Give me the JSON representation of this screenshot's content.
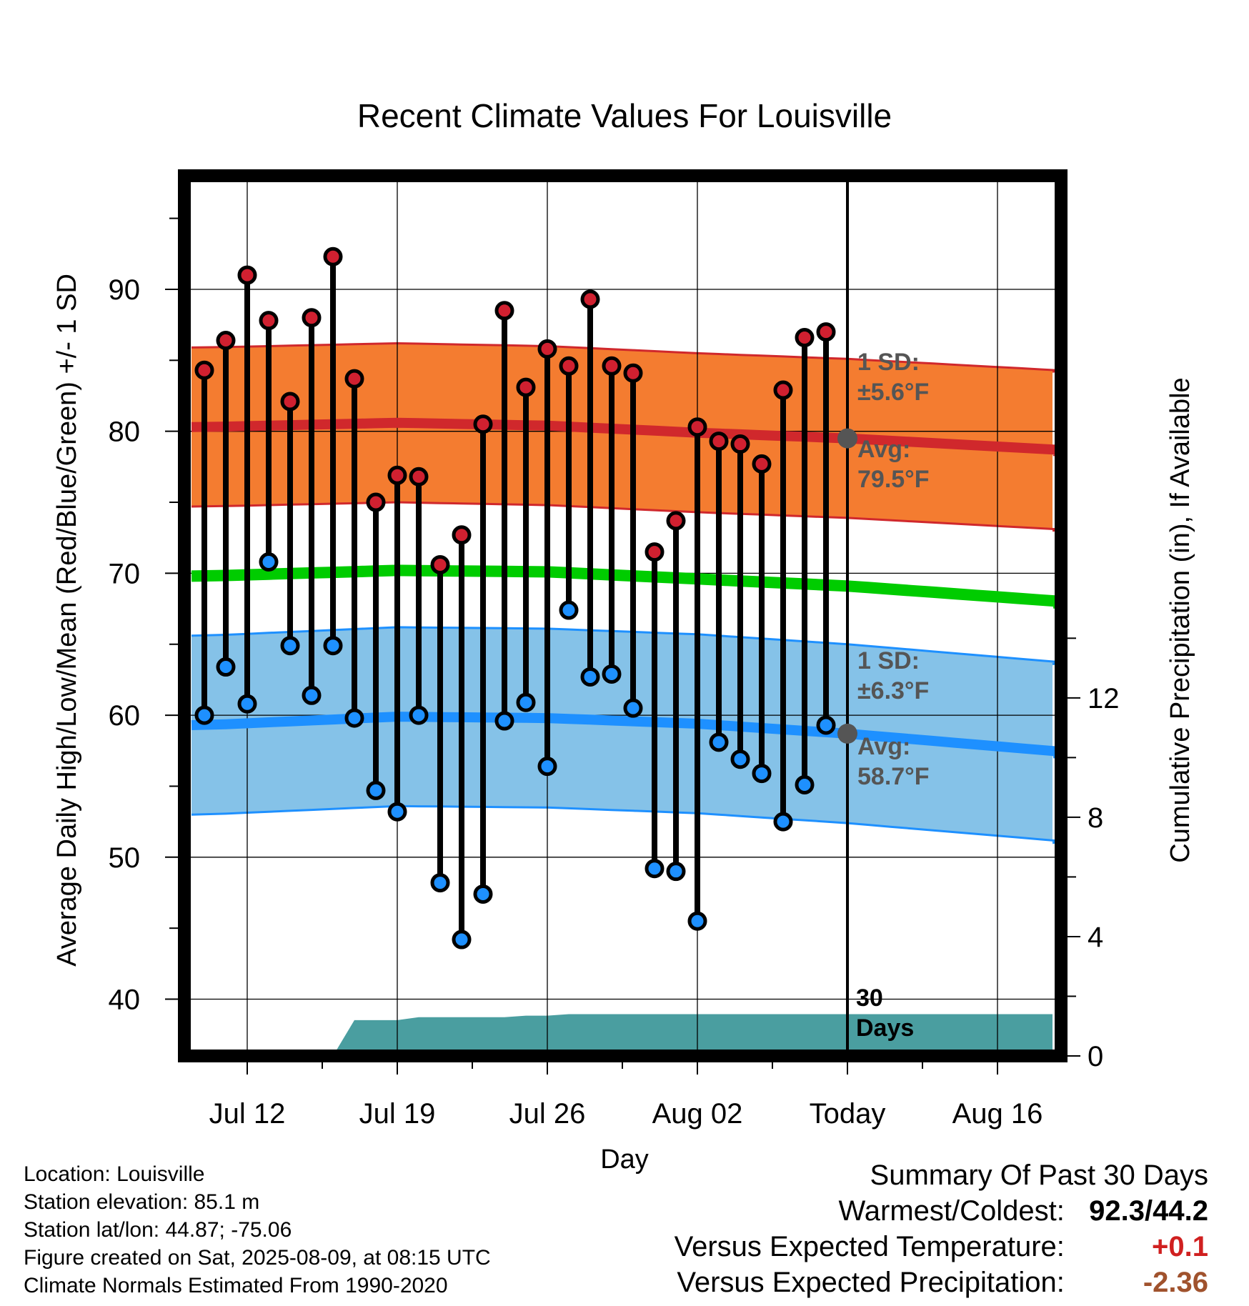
{
  "page": {
    "location_line": "Location: Louisville",
    "elevation_line": "Station elevation: 85.1 m",
    "latlon_line": "Station lat/lon: 44.87; -75.06",
    "created_line": "Figure created on Sat, 2025-08-09, at 08:15 UTC",
    "normals_line": "Climate Normals Estimated From 1990-2020"
  },
  "summary": {
    "title": "Summary Of Past 30 Days",
    "warmest_coldest_label": "Warmest/Coldest:",
    "warmest_coldest_value": "92.3/44.2",
    "temp_label": "Versus Expected Temperature:",
    "temp_value": "+0.1",
    "precip_label": "Versus Expected Precipitation:",
    "precip_value": "-2.36",
    "colors": {
      "temp_value": "#d02020",
      "precip_value": "#a0522d"
    }
  },
  "chart_data": {
    "type": "line",
    "title": "Recent Climate Values For Louisville",
    "xlabel": "Day",
    "ylabel": "Average Daily High/Low/Mean (Red/Blue/Green) +/- 1 SD",
    "y2label": "Cumulative Precipitation (in), If Available",
    "x_ticks": [
      "Jul 12",
      "Jul 19",
      "Jul 26",
      "Aug 02",
      "Today",
      "Aug 16"
    ],
    "x_dates": [
      "07-10",
      "07-11",
      "07-12",
      "07-13",
      "07-14",
      "07-15",
      "07-16",
      "07-17",
      "07-18",
      "07-19",
      "07-20",
      "07-21",
      "07-22",
      "07-23",
      "07-24",
      "07-25",
      "07-26",
      "07-27",
      "07-28",
      "07-29",
      "07-30",
      "07-31",
      "08-01",
      "08-02",
      "08-03",
      "08-04",
      "08-05",
      "08-06",
      "08-07",
      "08-08",
      "08-09",
      "08-10",
      "08-11",
      "08-12",
      "08-13",
      "08-14",
      "08-15",
      "08-16",
      "08-17",
      "08-18",
      "08-19",
      "08-20"
    ],
    "today": "08-09",
    "ylim": [
      36,
      98
    ],
    "y_ticks": [
      40,
      50,
      60,
      70,
      80,
      90
    ],
    "y2lim": [
      0,
      29.5
    ],
    "y2_ticks": [
      0,
      4,
      8,
      12
    ],
    "grid": true,
    "daily": {
      "dates": [
        "07-10",
        "07-11",
        "07-12",
        "07-13",
        "07-14",
        "07-15",
        "07-16",
        "07-17",
        "07-18",
        "07-19",
        "07-20",
        "07-21",
        "07-22",
        "07-23",
        "07-24",
        "07-25",
        "07-26",
        "07-27",
        "07-28",
        "07-29",
        "07-30",
        "07-31",
        "08-01",
        "08-02",
        "08-03",
        "08-04",
        "08-05",
        "08-06",
        "08-07",
        "08-08"
      ],
      "highs": [
        84.3,
        86.4,
        91.0,
        87.8,
        82.1,
        88.0,
        92.3,
        83.7,
        75.0,
        76.9,
        76.8,
        70.6,
        72.7,
        80.5,
        88.5,
        83.1,
        85.8,
        84.6,
        89.3,
        84.6,
        84.1,
        71.5,
        73.7,
        80.3,
        79.3,
        79.1,
        77.7,
        82.9,
        86.6,
        87.0
      ],
      "lows": [
        60.0,
        63.4,
        60.8,
        70.8,
        64.9,
        61.4,
        64.9,
        59.8,
        54.7,
        53.2,
        60.0,
        48.2,
        44.2,
        47.4,
        59.6,
        60.9,
        56.4,
        67.4,
        62.7,
        62.9,
        60.5,
        49.2,
        49.0,
        45.5,
        58.1,
        56.9,
        55.9,
        52.5,
        55.1,
        59.3
      ]
    },
    "normals": {
      "dates": [
        "07-10",
        "07-19",
        "07-26",
        "08-02",
        "08-09",
        "08-20"
      ],
      "high_avg": [
        80.3,
        80.6,
        80.4,
        79.9,
        79.5,
        78.6
      ],
      "high_sd": 5.6,
      "low_avg": [
        59.3,
        59.9,
        59.8,
        59.4,
        58.7,
        57.3
      ],
      "low_sd": 6.3,
      "mean_avg": [
        69.8,
        70.2,
        70.1,
        69.6,
        69.1,
        67.9
      ]
    },
    "precip": {
      "dates": [
        "07-10",
        "07-16",
        "07-17",
        "07-19",
        "07-20",
        "07-23",
        "07-24",
        "07-25",
        "07-26",
        "07-27",
        "08-20"
      ],
      "cumulative": [
        0,
        0,
        1.2,
        1.2,
        1.3,
        1.3,
        1.3,
        1.35,
        1.35,
        1.4,
        1.4
      ]
    },
    "annotations": {
      "high_sd": "1 SD:",
      "high_sd_value": "±5.6°F",
      "high_avg": "Avg:",
      "high_avg_value": "79.5°F",
      "low_sd": "1 SD:",
      "low_sd_value": "±6.3°F",
      "low_avg": "Avg:",
      "low_avg_value": "58.7°F",
      "days_label_1": "30",
      "days_label_2": "Days"
    },
    "colors": {
      "high_band": "#f47c30",
      "high_line": "#d0282c",
      "low_band": "#85c2e8",
      "low_line": "#1e90ff",
      "mean_line": "#00cc00",
      "precip": "#4a9ea0",
      "high_dot": "#d02030",
      "low_dot": "#1e90ff",
      "annotation": "#555555"
    }
  }
}
